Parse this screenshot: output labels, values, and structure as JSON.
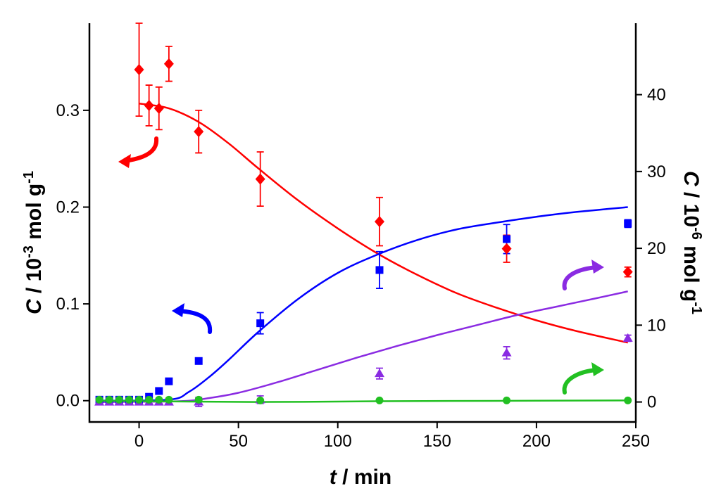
{
  "chart_data": {
    "type": "scatter",
    "x_axis": {
      "label_italic": "t",
      "label_rest": " / min",
      "range": [
        -25,
        250
      ],
      "ticks": [
        0,
        50,
        100,
        150,
        200,
        250
      ],
      "tick_labels": [
        "0",
        "50",
        "100",
        "150",
        "200",
        "250"
      ]
    },
    "y_left": {
      "label_italic": "C",
      "label_rest": " / 10",
      "label_exp1": "-3",
      "label_unit": " mol g",
      "label_exp2": "-1",
      "range": [
        -0.022,
        0.39
      ],
      "ticks": [
        0.0,
        0.1,
        0.2,
        0.3
      ],
      "tick_labels": [
        "0.0",
        "0.1",
        "0.2",
        "0.3"
      ]
    },
    "y_right": {
      "label_italic": "C",
      "label_rest": " / 10",
      "label_exp1": "-6",
      "label_unit": " mol g",
      "label_exp2": "-1",
      "range": [
        -2.6,
        49.3
      ],
      "ticks": [
        0,
        10,
        20,
        30,
        40
      ],
      "tick_labels": [
        "0",
        "10",
        "20",
        "30",
        "40"
      ]
    },
    "series": [
      {
        "name": "red",
        "color": "#ff0000",
        "axis": "left",
        "marker": "diamond",
        "x": [
          0,
          5,
          10,
          15,
          30,
          61,
          121,
          185,
          246
        ],
        "y": [
          0.342,
          0.305,
          0.302,
          0.348,
          0.278,
          0.229,
          0.185,
          0.157,
          0.133
        ],
        "err": [
          0.048,
          0.021,
          0.022,
          0.018,
          0.022,
          0.028,
          0.025,
          0.014,
          0.005
        ],
        "fit": [
          [
            0,
            0.307
          ],
          [
            15,
            0.302
          ],
          [
            30,
            0.288
          ],
          [
            45,
            0.266
          ],
          [
            60,
            0.24
          ],
          [
            80,
            0.207
          ],
          [
            100,
            0.178
          ],
          [
            120,
            0.152
          ],
          [
            140,
            0.13
          ],
          [
            160,
            0.111
          ],
          [
            180,
            0.096
          ],
          [
            200,
            0.083
          ],
          [
            220,
            0.072
          ],
          [
            246,
            0.06
          ]
        ],
        "arrow_to": "left"
      },
      {
        "name": "blue",
        "color": "#0000ff",
        "axis": "left",
        "marker": "square",
        "x": [
          -20,
          -15,
          -10,
          -5,
          0,
          5,
          10,
          15,
          30,
          61,
          121,
          185,
          246
        ],
        "y": [
          0.001,
          0.001,
          0.001,
          0.001,
          0.001,
          0.004,
          0.01,
          0.02,
          0.041,
          0.08,
          0.135,
          0.167,
          0.183
        ],
        "err": [
          0,
          0,
          0,
          0,
          0,
          0,
          0,
          0,
          0,
          0.011,
          0.019,
          0.015,
          0.004
        ],
        "fit": [
          [
            -20,
            0
          ],
          [
            15,
            0.001
          ],
          [
            25,
            0.009
          ],
          [
            35,
            0.024
          ],
          [
            45,
            0.042
          ],
          [
            60,
            0.071
          ],
          [
            80,
            0.105
          ],
          [
            100,
            0.132
          ],
          [
            120,
            0.151
          ],
          [
            140,
            0.166
          ],
          [
            160,
            0.177
          ],
          [
            180,
            0.184
          ],
          [
            200,
            0.19
          ],
          [
            220,
            0.195
          ],
          [
            246,
            0.2
          ]
        ],
        "arrow_to": "left"
      },
      {
        "name": "purple",
        "color": "#8a2be2",
        "axis": "right",
        "marker": "triangle",
        "x": [
          -20,
          -15,
          -10,
          -5,
          0,
          5,
          10,
          15,
          30,
          61,
          121,
          185,
          246
        ],
        "y": [
          0,
          0,
          0,
          0,
          0,
          0,
          0,
          0,
          0,
          0.3,
          3.7,
          6.4,
          8.3
        ],
        "err": [
          0.3,
          0.3,
          0.3,
          0.3,
          0.3,
          0.3,
          0.3,
          0.3,
          0.6,
          0.5,
          0.7,
          0.8,
          0.4
        ],
        "fit": [
          [
            -20,
            0
          ],
          [
            20,
            0.1
          ],
          [
            35,
            0.5
          ],
          [
            50,
            1.2
          ],
          [
            70,
            2.6
          ],
          [
            90,
            4.2
          ],
          [
            110,
            5.8
          ],
          [
            130,
            7.3
          ],
          [
            150,
            8.7
          ],
          [
            170,
            10.0
          ],
          [
            190,
            11.3
          ],
          [
            210,
            12.4
          ],
          [
            230,
            13.5
          ],
          [
            246,
            14.4
          ]
        ],
        "arrow_to": "right"
      },
      {
        "name": "green",
        "color": "#22c022",
        "axis": "right",
        "marker": "circle",
        "x": [
          -20,
          -15,
          -10,
          -5,
          0,
          5,
          10,
          15,
          30,
          61,
          121,
          185,
          246
        ],
        "y": [
          0.3,
          0.3,
          0.3,
          0.3,
          0.3,
          0.3,
          0.3,
          0.3,
          0.3,
          0.2,
          0.2,
          0.2,
          0.2
        ],
        "err": [
          0,
          0,
          0,
          0,
          0,
          0,
          0,
          0,
          0,
          0,
          0,
          0,
          0
        ],
        "fit": [
          [
            -20,
            0.15
          ],
          [
            60,
            0.0
          ],
          [
            120,
            0.1
          ],
          [
            246,
            0.2
          ]
        ],
        "arrow_to": "right"
      }
    ]
  }
}
